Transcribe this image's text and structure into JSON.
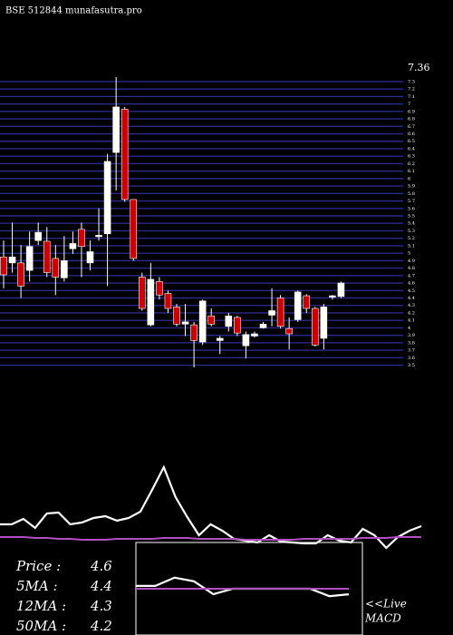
{
  "chart_data": [
    {
      "type": "candlestick",
      "title": "BSE 512844 munafasutra.pro",
      "categories": [
        null,
        null,
        null,
        null,
        null,
        null,
        null,
        null,
        null,
        null,
        null,
        null,
        null,
        null,
        null,
        null,
        null,
        null,
        null,
        null,
        null,
        null,
        null,
        null,
        null,
        null,
        null,
        null,
        null,
        null,
        null,
        null,
        null,
        null,
        null,
        null,
        null,
        null,
        null,
        null
      ],
      "open": [
        4.95,
        4.87,
        4.87,
        4.77,
        5.17,
        5.16,
        4.93,
        4.67,
        5.06,
        5.32,
        4.87,
        5.23,
        5.26,
        6.35,
        6.93,
        5.72,
        4.68,
        4.04,
        4.62,
        4.46,
        4.28,
        4.05,
        4.04,
        3.81,
        4.16,
        3.83,
        4.02,
        4.14,
        3.76,
        3.89,
        4.0,
        4.17,
        4.4,
        3.99,
        4.11,
        4.43,
        4.26,
        3.86,
        4.42,
        4.42
      ],
      "high": [
        5.17,
        5.41,
        5.11,
        5.29,
        5.41,
        5.35,
        5.11,
        5.23,
        5.29,
        5.41,
        5.17,
        5.6,
        6.33,
        7.36,
        6.96,
        5.72,
        4.74,
        4.87,
        4.68,
        4.5,
        4.32,
        4.32,
        4.08,
        4.38,
        4.26,
        3.89,
        4.2,
        4.16,
        3.95,
        3.95,
        4.08,
        4.53,
        4.44,
        4.14,
        4.5,
        4.45,
        4.28,
        4.32,
        4.44,
        4.62
      ],
      "low": [
        4.53,
        4.74,
        4.4,
        4.62,
        5.11,
        4.68,
        4.44,
        4.62,
        4.99,
        4.68,
        4.77,
        5.17,
        4.56,
        5.84,
        5.69,
        4.9,
        4.23,
        4.02,
        4.38,
        4.2,
        4.02,
        3.89,
        3.47,
        3.77,
        4.02,
        3.65,
        3.95,
        3.89,
        3.59,
        3.87,
        3.99,
        4.02,
        3.99,
        3.71,
        4.08,
        4.2,
        3.75,
        3.71,
        4.38,
        4.4
      ],
      "close": [
        4.71,
        4.95,
        4.56,
        5.09,
        5.28,
        4.74,
        4.68,
        4.9,
        5.13,
        5.09,
        5.02,
        5.24,
        6.23,
        6.96,
        5.72,
        4.93,
        4.26,
        4.65,
        4.44,
        4.26,
        4.05,
        4.08,
        3.83,
        4.36,
        4.05,
        3.86,
        4.16,
        3.93,
        3.91,
        3.92,
        4.05,
        4.23,
        4.02,
        3.92,
        4.48,
        4.26,
        3.77,
        4.28,
        4.43,
        4.6
      ],
      "up_color": "#ffffff",
      "down_color": "#cc0000",
      "grid_color": "#2a2a8a",
      "ylim": [
        3.47,
        7.36
      ],
      "yticks": [
        3.5,
        3.6,
        3.7,
        3.8,
        3.9,
        4,
        4.1,
        4.2,
        4.3,
        4.4,
        4.5,
        4.6,
        4.7,
        4.8,
        4.9,
        5,
        5.1,
        5.2,
        5.3,
        5.4,
        5.5,
        5.6,
        5.7,
        5.8,
        5.9,
        6,
        6.1,
        6.2,
        6.3,
        6.4,
        6.5,
        6.6,
        6.7,
        6.8,
        6.9,
        7,
        7.1,
        7.2,
        7.3
      ],
      "grid": true,
      "annotations": [
        {
          "text": "7.36",
          "value": 7.36
        }
      ],
      "stats": [
        {
          "label": "Price  :",
          "value": 4.6
        },
        {
          "label": "5MA :",
          "value": 4.4
        },
        {
          "label": "12MA :",
          "value": 4.3
        },
        {
          "label": "50MA :",
          "value": 4.2
        }
      ]
    },
    {
      "type": "line",
      "ylim": [
        -5,
        100
      ],
      "series": [
        {
          "color": "#ffffff",
          "values": [
            22,
            22,
            28,
            18,
            34,
            35,
            22,
            24,
            29,
            31,
            26,
            29,
            36,
            60,
            85,
            52,
            30,
            10,
            22,
            15,
            6,
            4,
            2,
            10,
            3,
            2,
            1,
            1,
            10,
            4,
            2,
            17,
            10,
            -4,
            8,
            15,
            20
          ]
        },
        {
          "color": "#b050c0",
          "values": [
            8,
            8,
            8,
            7,
            7,
            6,
            6,
            5,
            5,
            5,
            6,
            6,
            6,
            6,
            7,
            7,
            7,
            6,
            6,
            6,
            6,
            5,
            5,
            5,
            5,
            5,
            6,
            6,
            6,
            6,
            6,
            7,
            7,
            7,
            8,
            8,
            8
          ]
        }
      ]
    },
    {
      "type": "line",
      "ylim": [
        0,
        100
      ],
      "label": "<<Live",
      "label2": "MACD",
      "series": [
        {
          "color": "#ffffff",
          "values": [
            53,
            53,
            62,
            58,
            44,
            50,
            50,
            50,
            50,
            50,
            42,
            44
          ]
        },
        {
          "color": "#b050c0",
          "values": [
            50,
            50,
            50,
            50,
            50,
            50,
            50,
            50,
            50,
            50,
            50,
            50
          ]
        }
      ]
    }
  ]
}
